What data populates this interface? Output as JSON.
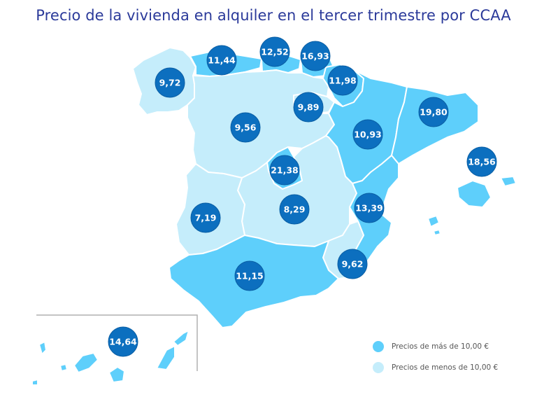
{
  "title": "Precio de la vivienda en alquiler en el tercer trimestre por CCAA",
  "colors": {
    "above": "#5ecffb",
    "below": "#c5edfb",
    "bubble": "#0c6fbf",
    "title": "#2b3a9a"
  },
  "legend": {
    "above_label": "Precios de más de 10,00 €",
    "below_label": "Precios de menos de 10,00 €"
  },
  "regions": [
    {
      "id": "galicia",
      "value": "9,72"
    },
    {
      "id": "asturias",
      "value": "11,44"
    },
    {
      "id": "cantabria",
      "value": "12,52"
    },
    {
      "id": "pais-vasco",
      "value": "16,93"
    },
    {
      "id": "navarra",
      "value": "11,98"
    },
    {
      "id": "la-rioja",
      "value": "9,89"
    },
    {
      "id": "castilla-y-leon",
      "value": "9,56"
    },
    {
      "id": "aragon",
      "value": "10,93"
    },
    {
      "id": "cataluna",
      "value": "19,80"
    },
    {
      "id": "madrid",
      "value": "21,38"
    },
    {
      "id": "castilla-la-mancha",
      "value": "8,29"
    },
    {
      "id": "extremadura",
      "value": "7,19"
    },
    {
      "id": "comunidad-valenciana",
      "value": "13,39"
    },
    {
      "id": "murcia",
      "value": "9,62"
    },
    {
      "id": "andalucia",
      "value": "11,15"
    },
    {
      "id": "baleares",
      "value": "18,56"
    },
    {
      "id": "canarias",
      "value": "14,64"
    }
  ]
}
